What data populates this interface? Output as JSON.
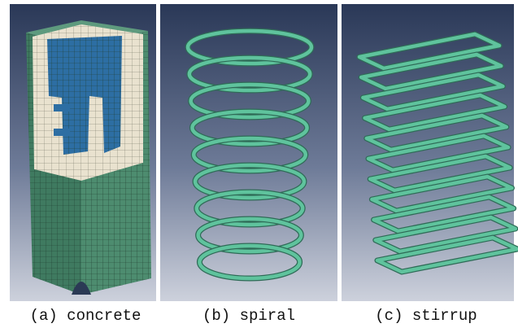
{
  "figure": {
    "panels": [
      {
        "caption": "(a) concrete"
      },
      {
        "caption": "(b) spiral"
      },
      {
        "caption": "(c) stirrup"
      }
    ]
  }
}
